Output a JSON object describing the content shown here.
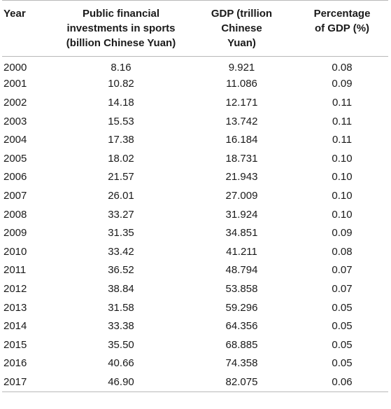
{
  "headers": {
    "year": "Year",
    "investment": [
      "Public financial",
      "investments in sports",
      "(billion Chinese Yuan)"
    ],
    "gdp": [
      "GDP (trillion",
      "Chinese",
      "Yuan)"
    ],
    "percentage": [
      "Percentage",
      "of GDP (%)"
    ]
  },
  "rows": [
    {
      "year": "2000",
      "investment": "8.16",
      "gdp": "9.921",
      "percentage": "0.08"
    },
    {
      "year": "2001",
      "investment": "10.82",
      "gdp": "11.086",
      "percentage": "0.09"
    },
    {
      "year": "2002",
      "investment": "14.18",
      "gdp": "12.171",
      "percentage": "0.11"
    },
    {
      "year": "2003",
      "investment": "15.53",
      "gdp": "13.742",
      "percentage": "0.11"
    },
    {
      "year": "2004",
      "investment": "17.38",
      "gdp": "16.184",
      "percentage": "0.11"
    },
    {
      "year": "2005",
      "investment": "18.02",
      "gdp": "18.731",
      "percentage": "0.10"
    },
    {
      "year": "2006",
      "investment": "21.57",
      "gdp": "21.943",
      "percentage": "0.10"
    },
    {
      "year": "2007",
      "investment": "26.01",
      "gdp": "27.009",
      "percentage": "0.10"
    },
    {
      "year": "2008",
      "investment": "33.27",
      "gdp": "31.924",
      "percentage": "0.10"
    },
    {
      "year": "2009",
      "investment": "31.35",
      "gdp": "34.851",
      "percentage": "0.09"
    },
    {
      "year": "2010",
      "investment": "33.42",
      "gdp": "41.211",
      "percentage": "0.08"
    },
    {
      "year": "2011",
      "investment": "36.52",
      "gdp": "48.794",
      "percentage": "0.07"
    },
    {
      "year": "2012",
      "investment": "38.84",
      "gdp": "53.858",
      "percentage": "0.07"
    },
    {
      "year": "2013",
      "investment": "31.58",
      "gdp": "59.296",
      "percentage": "0.05"
    },
    {
      "year": "2014",
      "investment": "33.38",
      "gdp": "64.356",
      "percentage": "0.05"
    },
    {
      "year": "2015",
      "investment": "35.50",
      "gdp": "68.885",
      "percentage": "0.05"
    },
    {
      "year": "2016",
      "investment": "40.66",
      "gdp": "74.358",
      "percentage": "0.05"
    },
    {
      "year": "2017",
      "investment": "46.90",
      "gdp": "82.075",
      "percentage": "0.06"
    }
  ]
}
